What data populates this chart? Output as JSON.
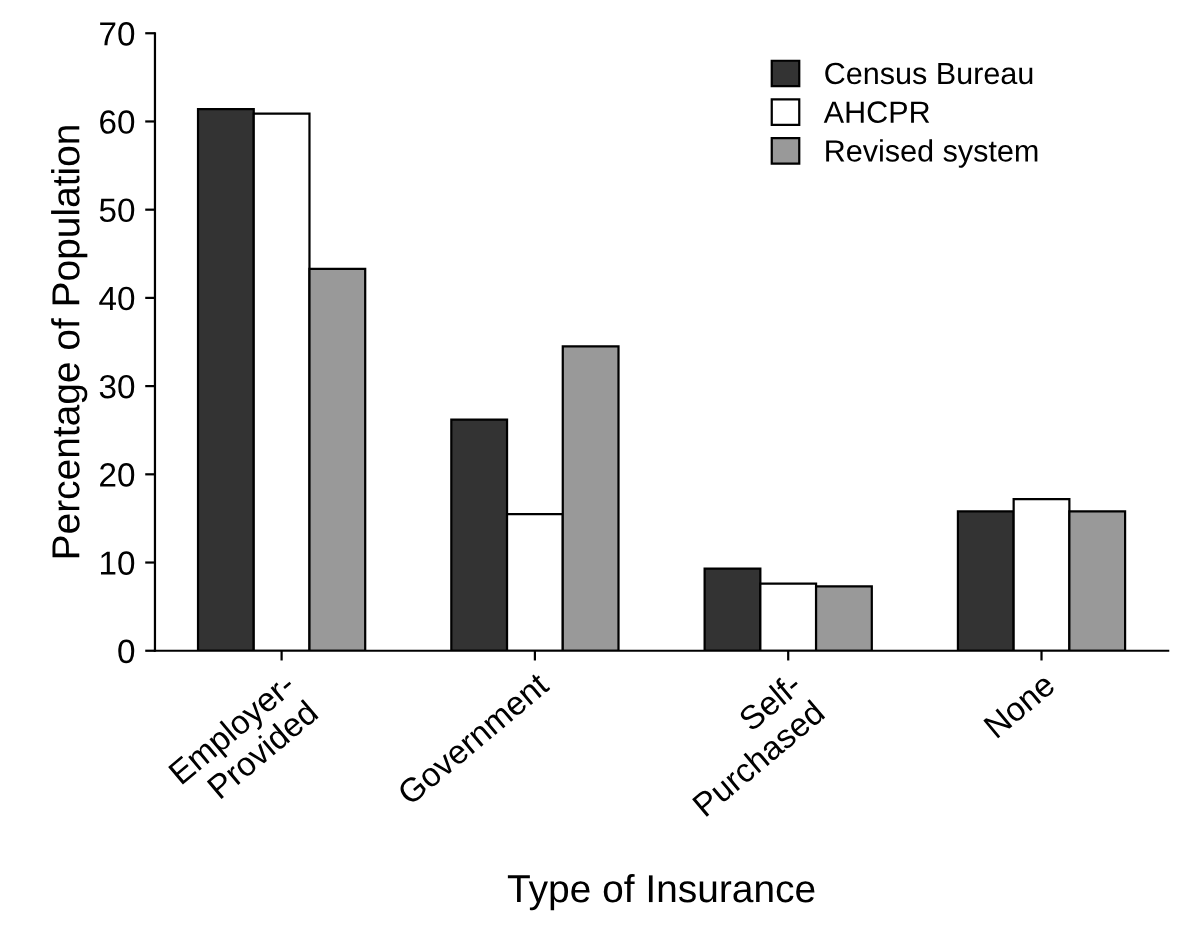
{
  "chart_data": {
    "type": "bar",
    "xlabel": "Type of Insurance",
    "ylabel": "Percentage of Population",
    "categories": [
      "Employer-\nProvided",
      "Government",
      "Self-\nPurchased",
      "None"
    ],
    "series": [
      {
        "name": "Census Bureau",
        "color": "#333333",
        "values": [
          61.4,
          26.2,
          9.3,
          15.8
        ]
      },
      {
        "name": "AHCPR",
        "color": "#ffffff",
        "values": [
          60.9,
          15.5,
          7.6,
          17.2
        ]
      },
      {
        "name": "Revised system",
        "color": "#999999",
        "values": [
          43.3,
          34.5,
          7.3,
          15.8
        ]
      }
    ],
    "ylim": [
      0,
      70
    ],
    "yticks": [
      0,
      10,
      20,
      30,
      40,
      50,
      60,
      70
    ],
    "grid": false,
    "legend": "top right"
  }
}
